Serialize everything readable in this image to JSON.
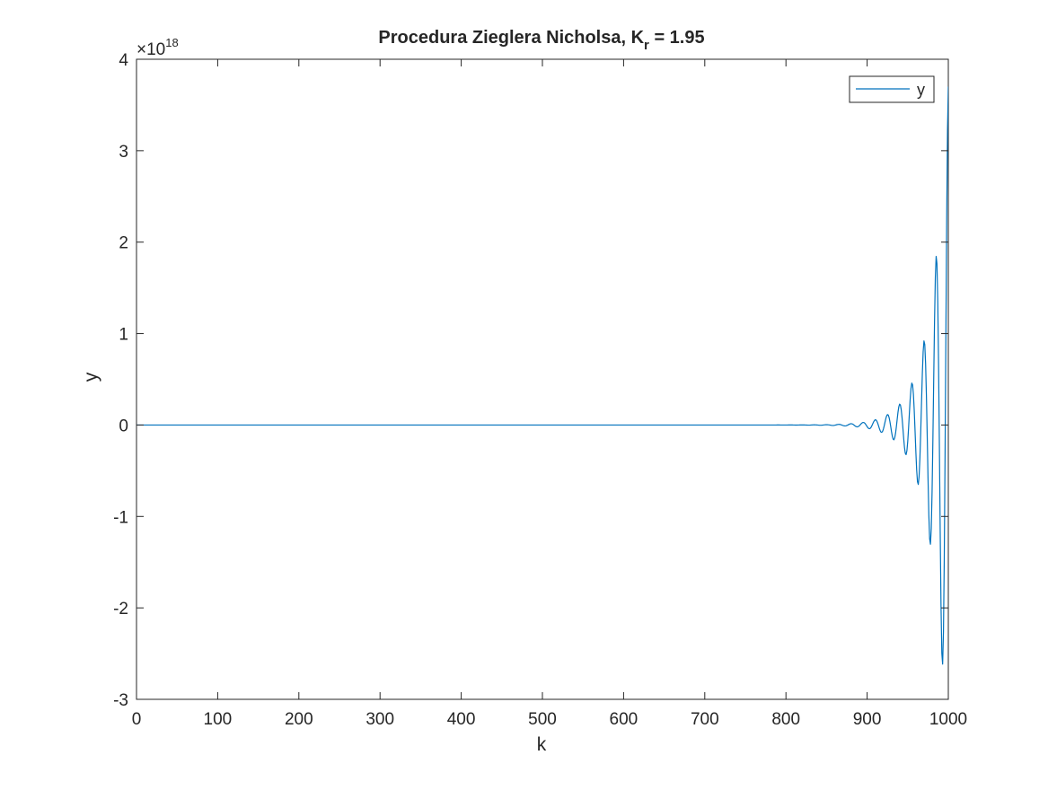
{
  "chart_data": {
    "type": "line",
    "title_main": "Procedura Zieglera Nicholsa, K",
    "title_sub": "r",
    "title_tail": " =  1.95",
    "xlabel": "k",
    "ylabel": "y",
    "y_exponent_base": "×10",
    "y_exponent_power": "18",
    "y_scale": 1e+18,
    "xlim": [
      0,
      1000
    ],
    "ylim": [
      -3,
      4
    ],
    "xticks": [
      0,
      100,
      200,
      300,
      400,
      500,
      600,
      700,
      800,
      900,
      1000
    ],
    "yticks": [
      -3,
      -2,
      -1,
      0,
      1,
      2,
      3,
      4
    ],
    "legend_position": "top-right",
    "grid": false,
    "line_color": "#0072BD",
    "series": [
      {
        "name": "y",
        "growth_per_sample": 1.0475,
        "period_samples": 15,
        "final_value": 3.7e+18
      }
    ]
  }
}
